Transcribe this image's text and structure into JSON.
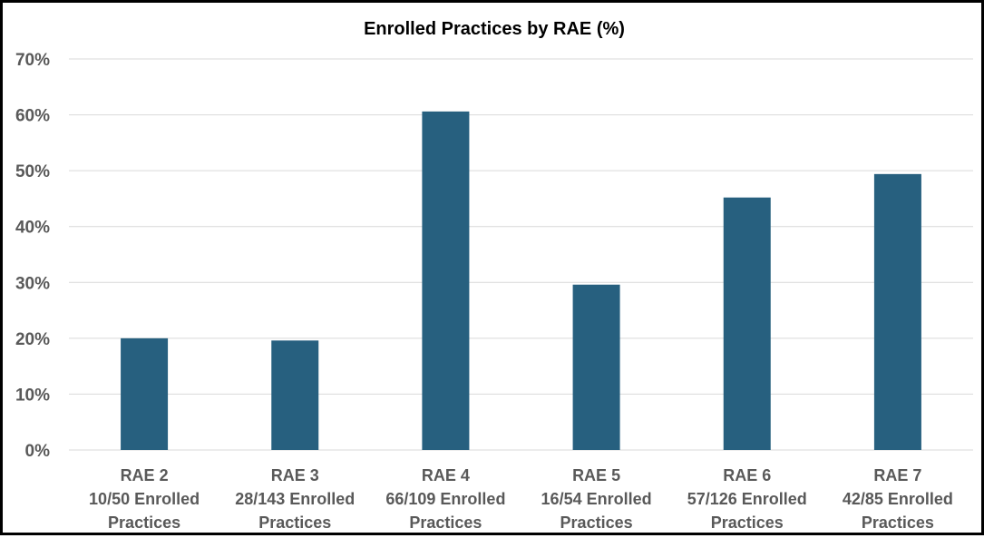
{
  "chart_data": {
    "type": "bar",
    "title": "Enrolled Practices by RAE (%)",
    "xlabel": "",
    "ylabel": "",
    "categories": [
      [
        "RAE 2",
        "10/50 Enrolled",
        "Practices"
      ],
      [
        "RAE 3",
        "28/143 Enrolled",
        "Practices"
      ],
      [
        "RAE 4",
        "66/109 Enrolled",
        "Practices"
      ],
      [
        "RAE 5",
        "16/54 Enrolled",
        "Practices"
      ],
      [
        "RAE 6",
        "57/126 Enrolled",
        "Practices"
      ],
      [
        "RAE 7",
        "42/85 Enrolled",
        "Practices"
      ]
    ],
    "values": [
      20.0,
      19.6,
      60.6,
      29.6,
      45.2,
      49.4
    ],
    "ylim": [
      0,
      70
    ],
    "yticks": [
      "0%",
      "10%",
      "20%",
      "30%",
      "40%",
      "50%",
      "60%",
      "70%"
    ],
    "grid": true,
    "legend": "none",
    "bar_color": "#27607F",
    "grid_color": "#D9D9D9"
  }
}
